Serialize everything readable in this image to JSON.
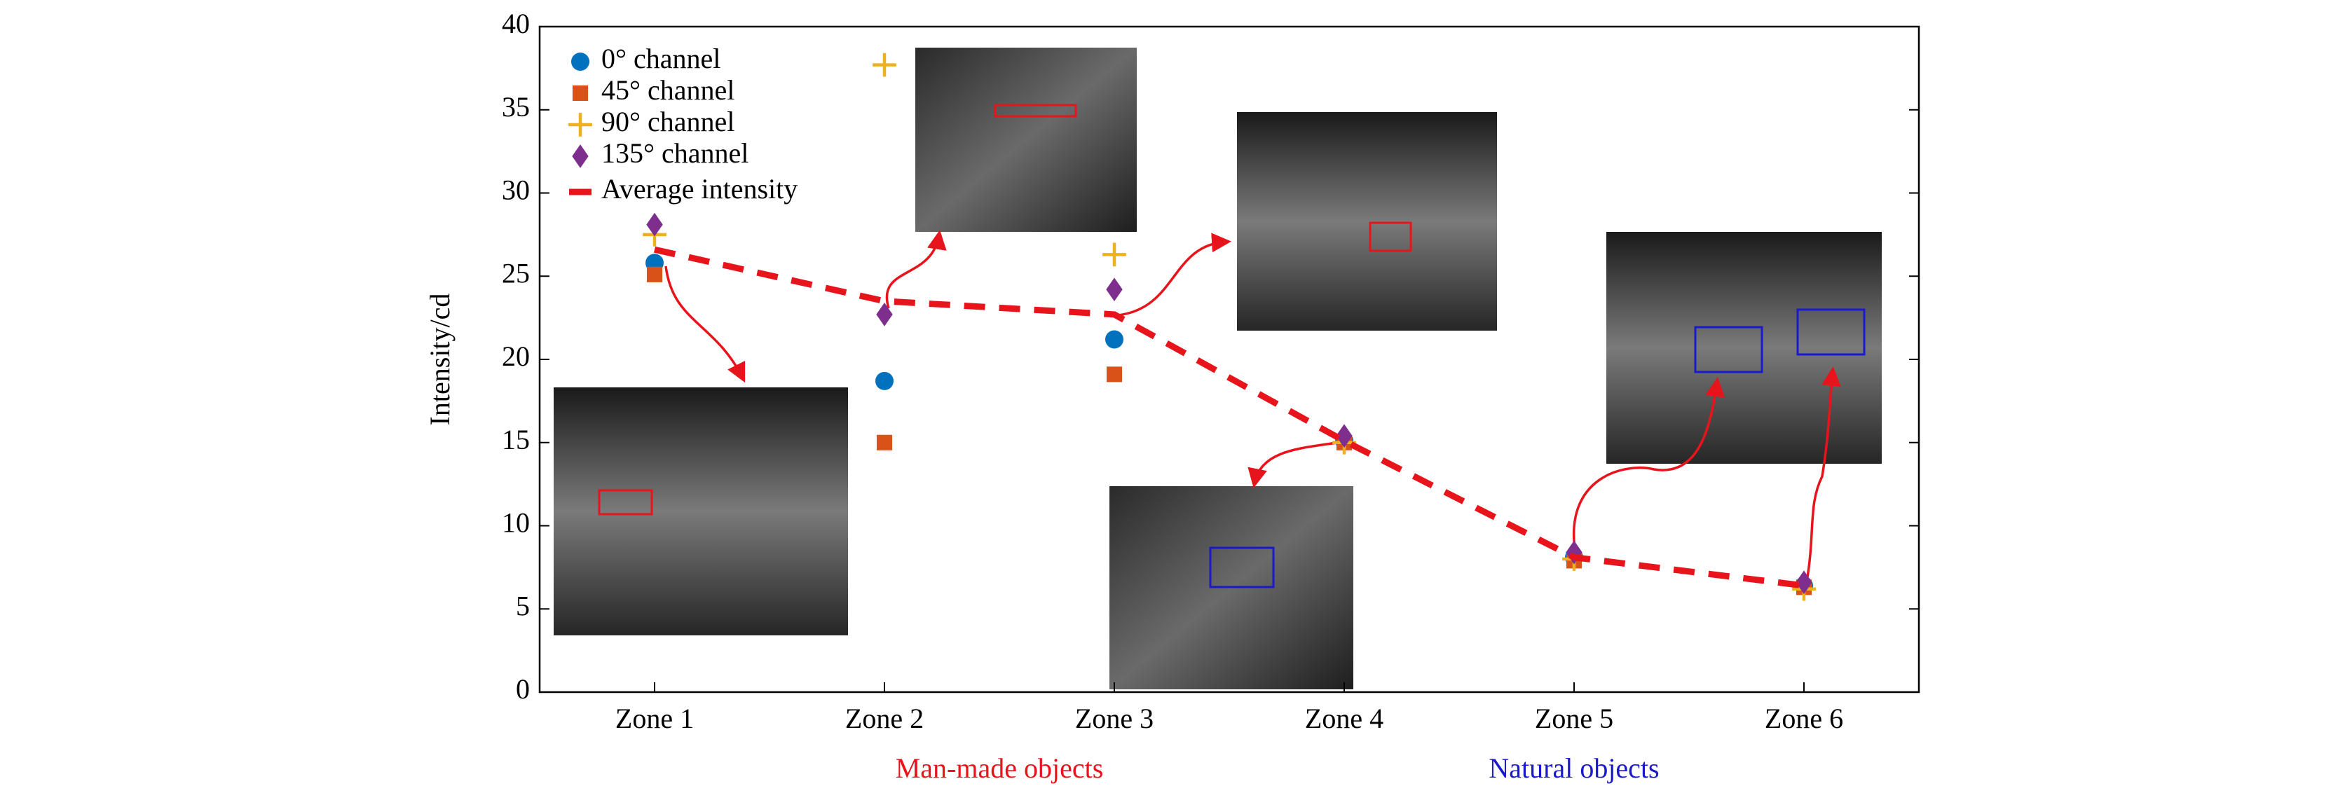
{
  "chart_data": {
    "type": "line",
    "y_label": "Intensity/cd",
    "categories": [
      "Zone 1",
      "Zone 2",
      "Zone 3",
      "Zone 4",
      "Zone 5",
      "Zone 6"
    ],
    "series": [
      {
        "name": "0° channel",
        "color": "#0072bd",
        "marker": "circle",
        "values": [
          25.8,
          18.7,
          21.2,
          15.1,
          8.1,
          6.4
        ]
      },
      {
        "name": "45° channel",
        "color": "#d95319",
        "marker": "square",
        "values": [
          25.1,
          15.0,
          19.1,
          15.0,
          7.9,
          6.3
        ]
      },
      {
        "name": "90° channel",
        "color": "#edb120",
        "marker": "plus",
        "values": [
          27.5,
          37.7,
          26.3,
          15.0,
          8.0,
          6.2
        ]
      },
      {
        "name": "135° channel",
        "color": "#7e2f8e",
        "marker": "diamond",
        "values": [
          28.1,
          22.7,
          24.2,
          15.4,
          8.4,
          6.6
        ]
      },
      {
        "name": "Average intensity",
        "color": "#e8141c",
        "marker": "dashed-line",
        "values": [
          26.6,
          23.5,
          22.7,
          15.1,
          8.1,
          6.4
        ]
      }
    ],
    "ylim": [
      0,
      40
    ],
    "yticks": [
      0,
      5,
      10,
      15,
      20,
      25,
      30,
      35,
      40
    ],
    "legend": "upper left",
    "annotations": [
      {
        "text": "Man-made objects",
        "color": "#e8141c"
      },
      {
        "text": "Natural objects",
        "color": "#1a1acc"
      }
    ]
  }
}
